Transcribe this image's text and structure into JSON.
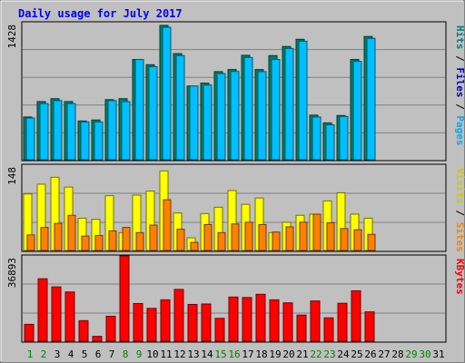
{
  "chart_data": {
    "type": "bar",
    "title": "Daily usage for July 2017",
    "days": [
      "1",
      "2",
      "3",
      "4",
      "5",
      "6",
      "7",
      "8",
      "9",
      "10",
      "11",
      "12",
      "13",
      "14",
      "15",
      "16",
      "17",
      "18",
      "19",
      "20",
      "21",
      "22",
      "23",
      "24",
      "25",
      "26",
      "27",
      "28",
      "29",
      "30",
      "31"
    ],
    "weekend_days": [
      "1",
      "2",
      "8",
      "9",
      "15",
      "16",
      "22",
      "23",
      "29",
      "30"
    ],
    "panels": [
      {
        "id": "hits",
        "max_label": "1428",
        "ymax": 1428,
        "right_labels": [
          {
            "text": "Hits",
            "color": "#008080"
          },
          {
            "text": "Files",
            "color": "#0000c0"
          },
          {
            "text": "Pages",
            "color": "#00aeef"
          }
        ],
        "series": [
          {
            "name": "Hits",
            "color": "#008060",
            "values": [
              445,
              606,
              636,
              606,
              404,
              414,
              626,
              636,
              1045,
              990,
              1400,
              1106,
              768,
              798,
              918,
              940,
              1088,
              940,
              1085,
              1180,
              1255,
              465,
              384,
              461,
              1045,
              1284,
              0,
              0,
              0,
              0,
              0
            ]
          },
          {
            "name": "Files",
            "color": "#0000c0",
            "values": [
              310,
              360,
              400,
              370,
              260,
              230,
              420,
              430,
              770,
              700,
              1060,
              800,
              470,
              490,
              540,
              520,
              650,
              640,
              770,
              900,
              920,
              310,
              250,
              310,
              770,
              860,
              0,
              0,
              0,
              0,
              0
            ]
          },
          {
            "name": "Pages",
            "color": "#00bfff",
            "values": [
              435,
              585,
              616,
              585,
              394,
              394,
              616,
              606,
              1045,
              970,
              1380,
              1085,
              768,
              778,
              898,
              920,
              1065,
              918,
              1045,
              1160,
              1235,
              445,
              364,
              451,
              1025,
              1264,
              0,
              0,
              0,
              0,
              0
            ]
          }
        ]
      },
      {
        "id": "visits",
        "max_label": "148",
        "ymax": 148,
        "right_labels": [
          {
            "text": "Visits",
            "color": "#cccc00"
          },
          {
            "text": "Sites",
            "color": "#ff8000"
          }
        ],
        "series": [
          {
            "name": "Visits",
            "color": "#ffff00",
            "values": [
              98,
              115,
              127,
              110,
              56,
              54,
              95,
              31,
              96,
              103,
              138,
              65,
              22,
              64,
              75,
              104,
              80,
              91,
              31,
              49,
              61,
              63,
              86,
              100,
              63,
              56,
              0,
              0,
              0,
              0,
              0
            ]
          },
          {
            "name": "Sites",
            "color": "#ff8000",
            "values": [
              27,
              40,
              47,
              61,
              25,
              26,
              34,
              40,
              31,
              44,
              88,
              37,
              14,
              45,
              31,
              46,
              49,
              45,
              32,
              41,
              49,
              63,
              48,
              38,
              36,
              28,
              0,
              0,
              0,
              0,
              0
            ]
          }
        ]
      },
      {
        "id": "kbytes",
        "max_label": "36893",
        "ymax": 36893,
        "right_labels": [
          {
            "text": "KBytes",
            "color": "#ff0000"
          }
        ],
        "series": [
          {
            "name": "KBytes",
            "color": "#ff0000",
            "values": [
              7300,
              27000,
              23500,
              21300,
              8900,
              2100,
              10800,
              36893,
              16300,
              14200,
              17900,
              22400,
              15900,
              16100,
              9900,
              19100,
              18900,
              20300,
              17900,
              16600,
              11300,
              17400,
              10100,
              16400,
              21800,
              12700,
              0,
              0,
              0,
              0,
              0
            ]
          }
        ]
      }
    ]
  }
}
